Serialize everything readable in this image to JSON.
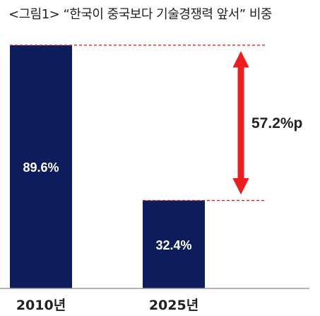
{
  "chart_data": {
    "type": "bar",
    "title": "<그림1> “한국이 중국보다 기술경쟁력 앞서” 비중",
    "categories": [
      "2010년",
      "2025년"
    ],
    "values": [
      89.6,
      32.4
    ],
    "value_labels": [
      "89.6%",
      "32.4%"
    ],
    "unit": "%",
    "ylim": [
      0,
      100
    ],
    "grid": false,
    "legend": "none",
    "annotation": {
      "text": "57.2%p",
      "from_value": 89.6,
      "to_value": 32.4
    }
  },
  "colors": {
    "bar": "#0d1c5c",
    "bar_label": "#ffffff",
    "arrow": "#ee1c1c",
    "guide_line": "#e02020",
    "axis": "#9a9a9a",
    "text": "#222222"
  }
}
